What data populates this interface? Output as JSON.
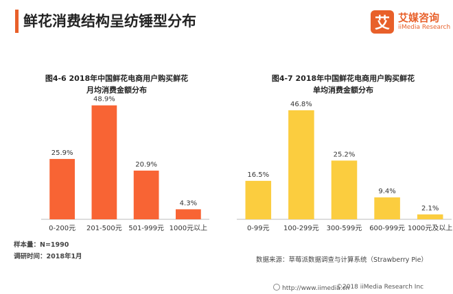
{
  "header": {
    "title": "鲜花消费结构呈纺锤型分布"
  },
  "logo": {
    "mark": "艾",
    "name_cn": "艾媒咨询",
    "name_en": "iiMedia Research"
  },
  "chart_data": [
    {
      "type": "bar",
      "title_line1": "图4-6 2018年中国鲜花电商用户购买鲜花",
      "title_line2": "月均消费金额分布",
      "categories": [
        "0-200元",
        "201-500元",
        "501-999元",
        "1000元以上"
      ],
      "values": [
        25.9,
        48.9,
        20.9,
        4.3
      ],
      "value_labels": [
        "25.9%",
        "48.9%",
        "20.9%",
        "4.3%"
      ],
      "ylim": [
        0,
        50
      ],
      "color": "#f86434",
      "grid": false
    },
    {
      "type": "bar",
      "title_line1": "图4-7 2018年中国鲜花电商用户购买鲜花",
      "title_line2": "单均消费金额分布",
      "categories": [
        "0-99元",
        "100-299元",
        "300-599元",
        "600-999元",
        "1000元及以上"
      ],
      "values": [
        16.5,
        46.8,
        25.2,
        9.4,
        2.1
      ],
      "value_labels": [
        "16.5%",
        "46.8%",
        "25.2%",
        "9.4%",
        "2.1%"
      ],
      "ylim": [
        0,
        50
      ],
      "color": "#fbcd3f",
      "grid": false
    }
  ],
  "notes": {
    "sample": "样本量：N=1990",
    "survey_time": "调研时间：2018年1月",
    "source": "数据来源：草莓派数据调查与计算系统（Strawberry Pie）"
  },
  "footer": {
    "url": "http://www.iimedia.cn",
    "copyright": "©2018  iiMedia Research  Inc"
  }
}
